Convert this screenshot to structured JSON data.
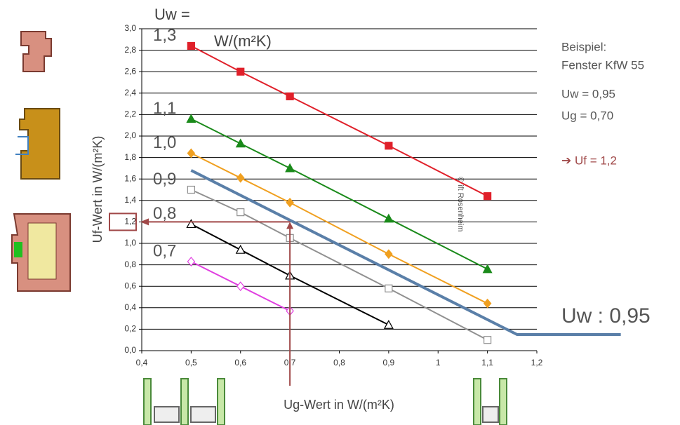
{
  "chart_data": {
    "type": "line",
    "xlabel": "Ug-Wert in W/(m²K)",
    "ylabel": "Uf-Wert in W/(m²K)",
    "header_prefix": "Uw =",
    "header_unit": "W/(m²K)",
    "watermark": "© ift Rosenheim",
    "xlim": [
      0.4,
      1.2
    ],
    "ylim": [
      0,
      3
    ],
    "xticks": [
      {
        "value": 0.4,
        "label": "0,4"
      },
      {
        "value": 0.5,
        "label": "0,5"
      },
      {
        "value": 0.6,
        "label": "0,6"
      },
      {
        "value": 0.7,
        "label": "0,7"
      },
      {
        "value": 0.8,
        "label": "0,8"
      },
      {
        "value": 0.9,
        "label": "0,9"
      },
      1,
      {
        "value": 1.1,
        "label": "1,1"
      },
      {
        "value": 1.2,
        "label": "1,2"
      }
    ],
    "yticks": [
      {
        "value": 0,
        "label": "0,0"
      },
      {
        "value": 0.2,
        "label": "0,2"
      },
      {
        "value": 0.4,
        "label": "0,4"
      },
      {
        "value": 0.6,
        "label": "0,6"
      },
      {
        "value": 0.8,
        "label": "0,8"
      },
      {
        "value": 1.0,
        "label": "1,0"
      },
      {
        "value": 1.2,
        "label": "1,2"
      },
      {
        "value": 1.4,
        "label": "1,4"
      },
      {
        "value": 1.6,
        "label": "1,6"
      },
      {
        "value": 1.8,
        "label": "1,8"
      },
      {
        "value": 2.0,
        "label": "2,0"
      },
      {
        "value": 2.2,
        "label": "2,2"
      },
      {
        "value": 2.4,
        "label": "2,4"
      },
      {
        "value": 2.6,
        "label": "2,6"
      },
      {
        "value": 2.8,
        "label": "2,8"
      },
      {
        "value": 3.0,
        "label": "3,0"
      }
    ],
    "grid": true,
    "series": [
      {
        "name": "1,3",
        "color": "#e0202a",
        "marker": "square",
        "marker_filled": true,
        "x": [
          0.5,
          0.6,
          0.7,
          0.9,
          1.1
        ],
        "values": [
          2.84,
          2.6,
          2.37,
          1.91,
          1.44
        ]
      },
      {
        "name": "1,1",
        "color": "#1a8a1a",
        "marker": "triangle",
        "marker_filled": true,
        "x": [
          0.5,
          0.6,
          0.7,
          0.9,
          1.1
        ],
        "values": [
          2.16,
          1.93,
          1.7,
          1.23,
          0.76
        ]
      },
      {
        "name": "1,0",
        "color": "#f0a020",
        "marker": "diamond",
        "marker_filled": true,
        "x": [
          0.5,
          0.6,
          0.7,
          0.9,
          1.1
        ],
        "values": [
          1.84,
          1.61,
          1.38,
          0.9,
          0.44
        ]
      },
      {
        "name": "0,9",
        "color": "#909090",
        "marker": "square",
        "marker_filled": false,
        "x": [
          0.5,
          0.6,
          0.7,
          0.9,
          1.1
        ],
        "values": [
          1.5,
          1.29,
          1.05,
          0.58,
          0.1
        ]
      },
      {
        "name": "0,8",
        "color": "#000000",
        "marker": "triangle",
        "marker_filled": false,
        "x": [
          0.5,
          0.6,
          0.7,
          0.9
        ],
        "values": [
          1.18,
          0.94,
          0.7,
          0.24
        ]
      },
      {
        "name": "0,7",
        "color": "#e040e0",
        "marker": "diamond",
        "marker_filled": false,
        "x": [
          0.5,
          0.6,
          0.7
        ],
        "values": [
          0.83,
          0.6,
          0.37
        ]
      }
    ],
    "highlight": {
      "name": "Uw : 0,95",
      "color": "#5a7fa8",
      "x": [
        0.5,
        1.16,
        1.37
      ],
      "values": [
        1.68,
        0.15,
        0.15
      ]
    },
    "guide": {
      "x": 0.7,
      "y": 1.2,
      "color": "#a04848"
    },
    "example": {
      "title": "Beispiel:",
      "subtitle": "Fenster KfW 55",
      "uw": "Uw = 0,95",
      "ug": "Ug = 0,70",
      "result": "➔ Uf = 1,2"
    }
  }
}
